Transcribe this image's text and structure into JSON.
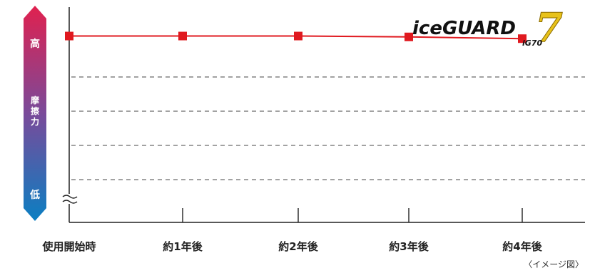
{
  "chart_data": {
    "type": "line",
    "categories": [
      "使用開始時",
      "約1年後",
      "約2年後",
      "約3年後",
      "約4年後"
    ],
    "series": [
      {
        "values": [
          100,
          100,
          100,
          99.5,
          98.5
        ],
        "color": "#e0191f"
      }
    ],
    "ylim": [
      0,
      110
    ],
    "grid": "dashed-horizontal",
    "y_scale_bar": {
      "high_label": "高",
      "mid_label": "摩擦力",
      "low_label": "低",
      "gradient_top_color": "#e0214f",
      "gradient_bottom_color": "#0a7fc2"
    },
    "note": "〈イメージ図〉"
  },
  "logo": {
    "brand_text": "iceGUARD",
    "model_number": "7",
    "model_code": "iG70"
  }
}
